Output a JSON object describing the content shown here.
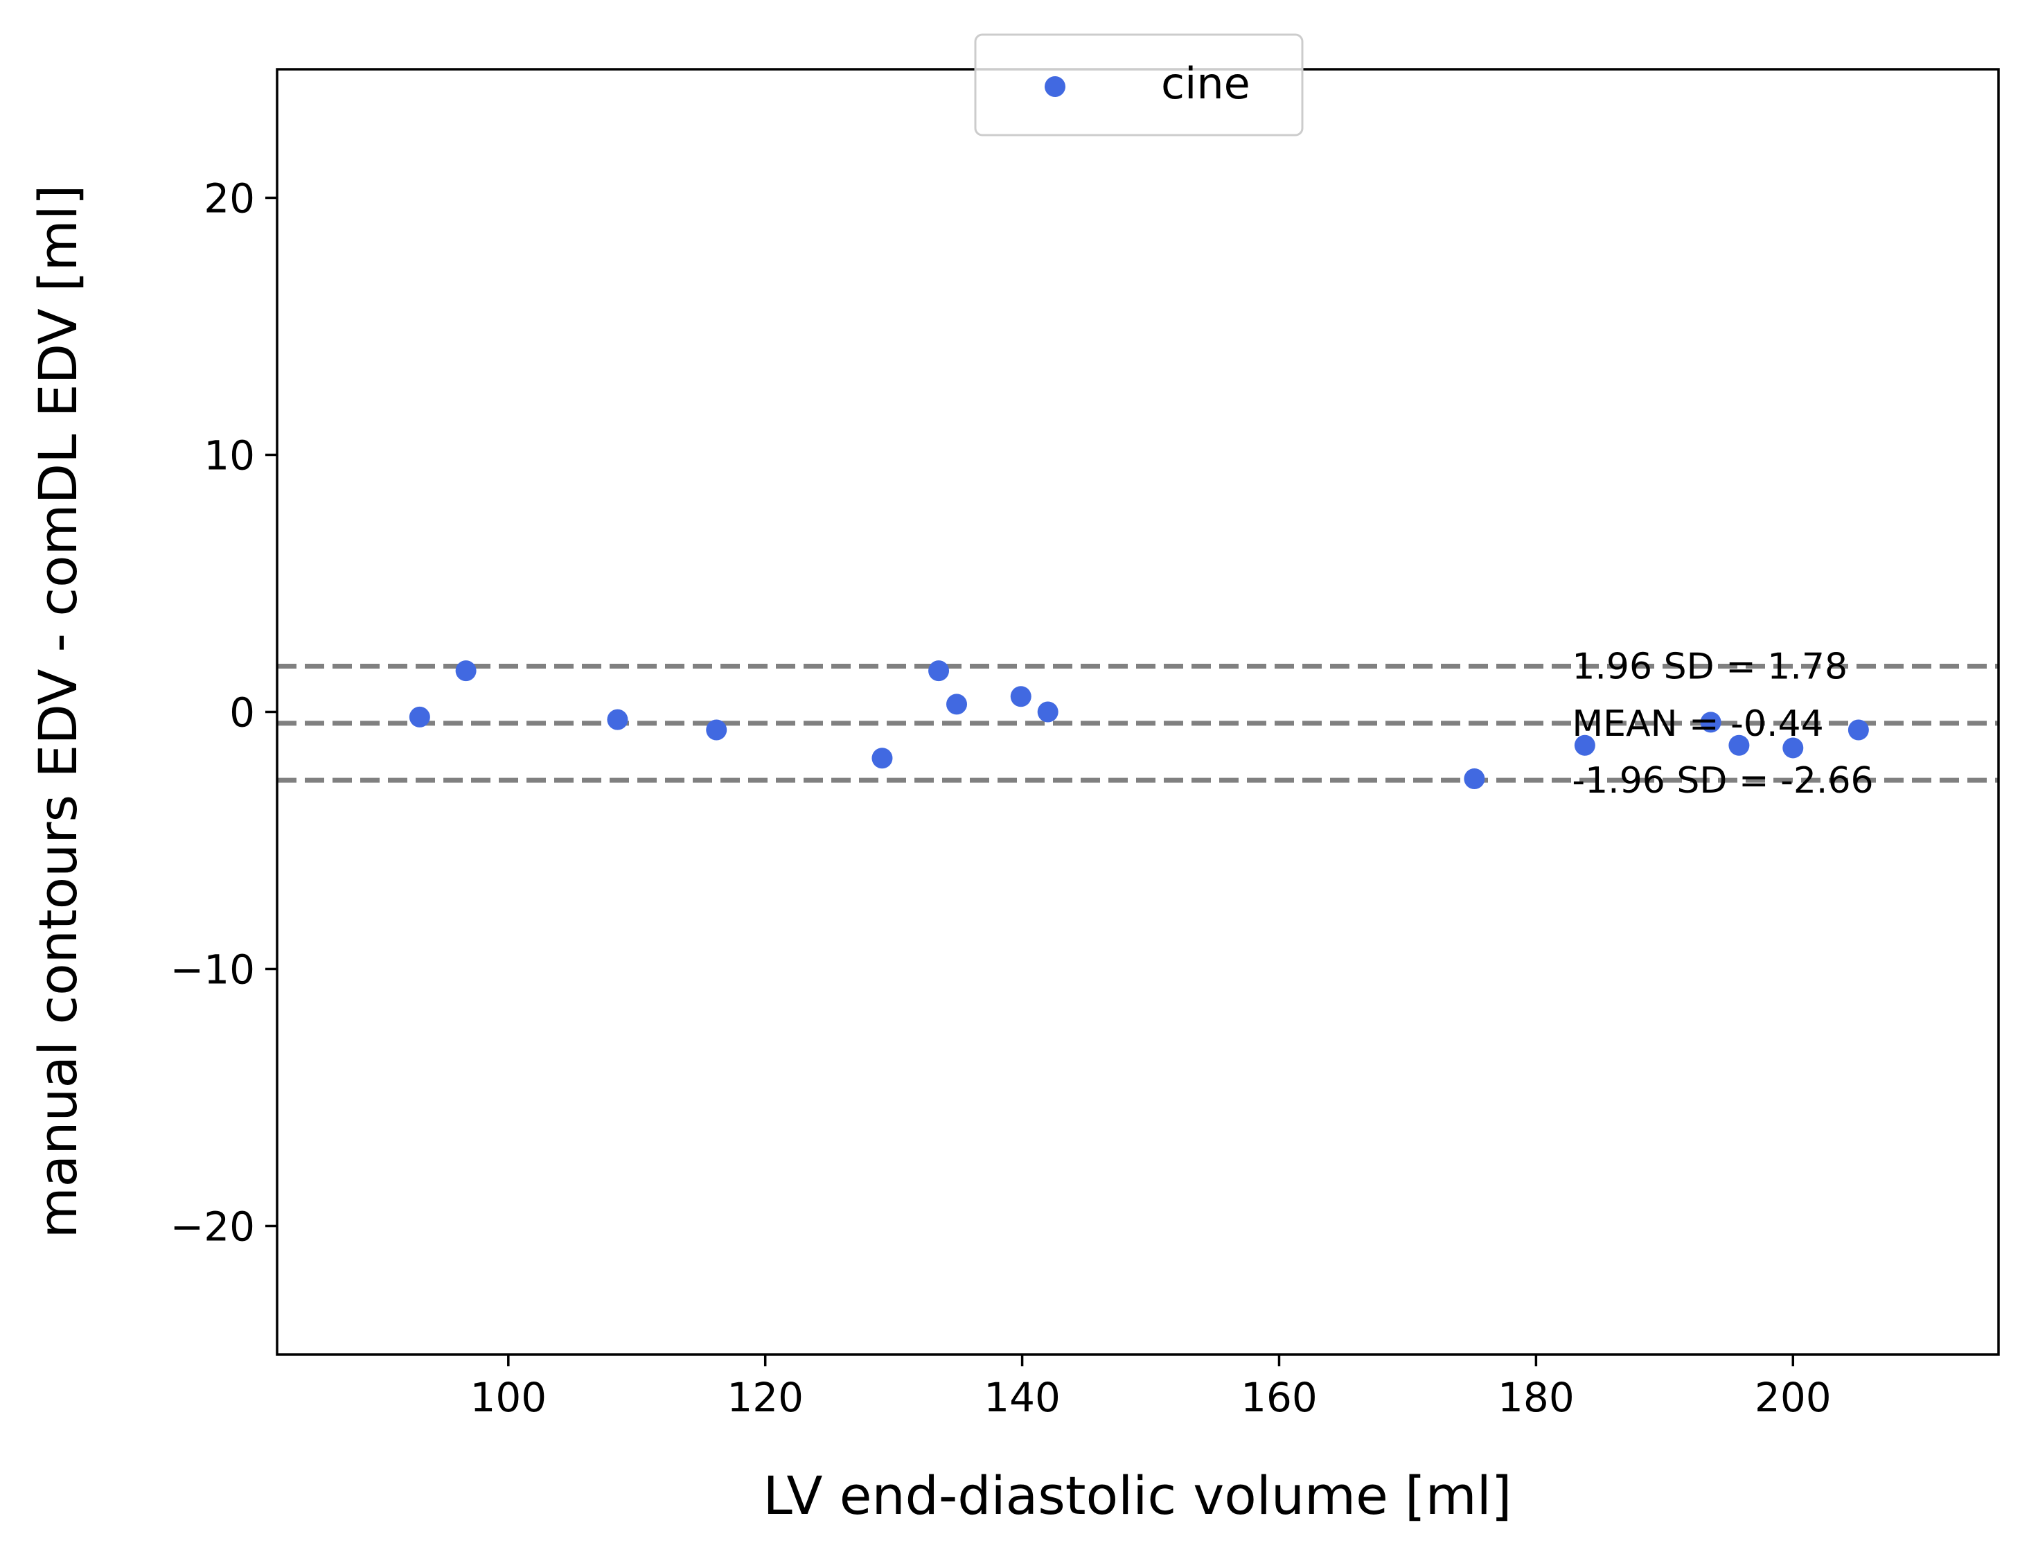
{
  "chart_data": {
    "type": "scatter",
    "xlabel": "LV end-diastolic volume [ml]",
    "ylabel": "manual contours EDV - comDL EDV [ml]",
    "xlim": [
      82,
      216
    ],
    "ylim": [
      -25,
      25
    ],
    "xticks": [
      100,
      120,
      140,
      160,
      180,
      200
    ],
    "yticks": [
      -20,
      -10,
      0,
      10,
      20
    ],
    "grid": false,
    "legend_placement": "upper-center",
    "series": [
      {
        "name": "cine",
        "color": "#4169e1",
        "points": [
          {
            "x": 93.1,
            "y": -0.2
          },
          {
            "x": 96.7,
            "y": 1.6
          },
          {
            "x": 108.5,
            "y": -0.3
          },
          {
            "x": 116.2,
            "y": -0.7
          },
          {
            "x": 129.1,
            "y": -1.8
          },
          {
            "x": 133.5,
            "y": 1.6
          },
          {
            "x": 134.9,
            "y": 0.3
          },
          {
            "x": 139.9,
            "y": 0.6
          },
          {
            "x": 142.0,
            "y": 0.0
          },
          {
            "x": 175.2,
            "y": -2.6
          },
          {
            "x": 183.8,
            "y": -1.3
          },
          {
            "x": 193.6,
            "y": -0.4
          },
          {
            "x": 195.8,
            "y": -1.3
          },
          {
            "x": 200.0,
            "y": -1.4
          },
          {
            "x": 205.1,
            "y": -0.7
          }
        ]
      }
    ],
    "reference_lines": [
      {
        "y": 1.78,
        "label": "1.96 SD = 1.78",
        "style": "dashed",
        "color": "#808080"
      },
      {
        "y": -0.44,
        "label": "MEAN = -0.44",
        "style": "dashed",
        "color": "#808080"
      },
      {
        "y": -2.66,
        "label": "-1.96 SD = -2.66",
        "style": "dashed",
        "color": "#808080"
      }
    ],
    "annotation_anchor_x": 182.8
  }
}
